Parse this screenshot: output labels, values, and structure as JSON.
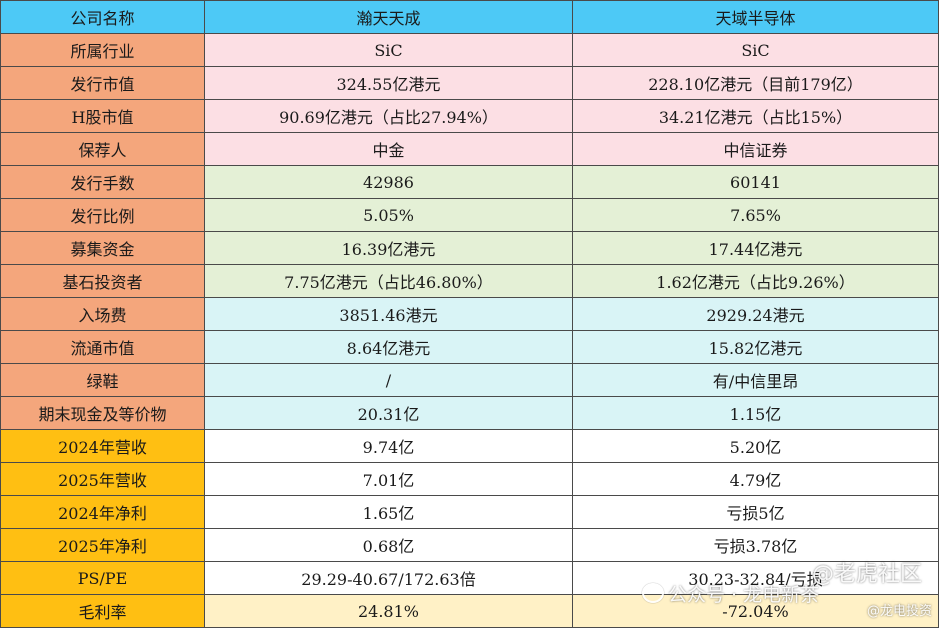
{
  "header": {
    "label": "公司名称",
    "company_a": "瀚天天成",
    "company_b": "天域半导体"
  },
  "rows": [
    {
      "label": "所属行业",
      "a": "SiC",
      "b": "SiC"
    },
    {
      "label": "发行市值",
      "a": "324.55亿港元",
      "b": "228.10亿港元（目前179亿）"
    },
    {
      "label": "H股市值",
      "a": "90.69亿港元（占比27.94%）",
      "b": "34.21亿港元（占比15%）"
    },
    {
      "label": "保荐人",
      "a": "中金",
      "b": "中信证券"
    },
    {
      "label": "发行手数",
      "a": "42986",
      "b": "60141"
    },
    {
      "label": "发行比例",
      "a": "5.05%",
      "b": "7.65%"
    },
    {
      "label": "募集资金",
      "a": "16.39亿港元",
      "b": "17.44亿港元"
    },
    {
      "label": "基石投资者",
      "a": "7.75亿港元（占比46.80%）",
      "b": "1.62亿港元（占比9.26%）"
    },
    {
      "label": "入场费",
      "a": "3851.46港元",
      "b": "2929.24港元"
    },
    {
      "label": "流通市值",
      "a": "8.64亿港元",
      "b": "15.82亿港元"
    },
    {
      "label": "绿鞋",
      "a": "/",
      "b": "有/中信里昂"
    },
    {
      "label": "期末现金及等价物",
      "a": "20.31亿",
      "b": "1.15亿"
    },
    {
      "label": "2024年营收",
      "a": "9.74亿",
      "b": "5.20亿"
    },
    {
      "label": "2025年营收",
      "a": "7.01亿",
      "b": "4.79亿"
    },
    {
      "label": "2024年净利",
      "a": "1.65亿",
      "b": "亏损5亿"
    },
    {
      "label": "2025年净利",
      "a": "0.68亿",
      "b": "亏损3.78亿"
    },
    {
      "label": "PS/PE",
      "a": "29.29-40.67/172.63倍",
      "b": "30.23-32.84/亏损"
    },
    {
      "label": "毛利率",
      "a": "24.81%",
      "b": "-72.04%"
    }
  ],
  "watermarks": {
    "community": "@老虎社区",
    "account": "公众号 · 龙电新茶",
    "handle": "@龙电投资"
  },
  "colors": {
    "header_bg": "#4dc9f6",
    "label_salmon": "#f4a67c",
    "label_gold": "#ffbf12",
    "band_pink": "#fcdfe4",
    "band_green": "#e4f0d6",
    "band_cyan": "#d9f4f6",
    "band_white": "#ffffff",
    "band_cream": "#fff1c6"
  }
}
